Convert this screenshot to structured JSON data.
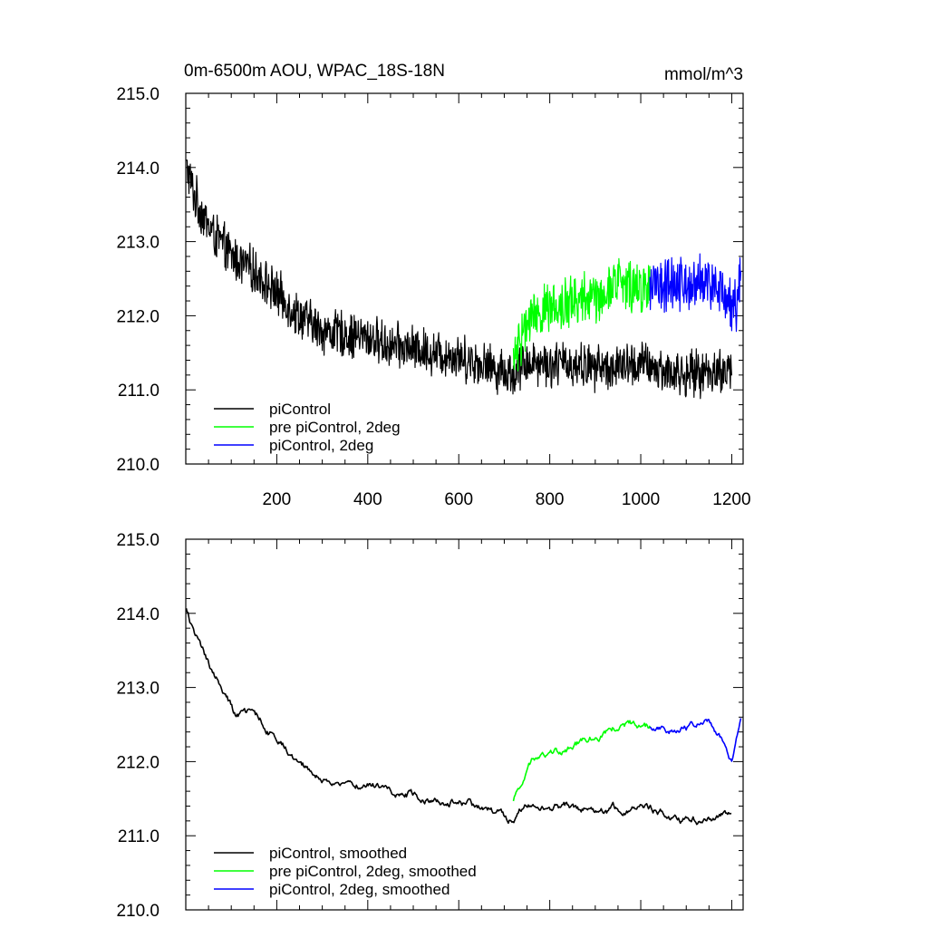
{
  "chart_data": [
    {
      "type": "line",
      "title": "0m-6500m AOU, WPAC_18S-18N",
      "units": "mmol/m^3",
      "xlim": [
        0,
        1225
      ],
      "ylim": [
        210.0,
        215.0
      ],
      "xticks": [
        200,
        400,
        600,
        800,
        1000,
        1200
      ],
      "xtick_labels": [
        "200",
        "400",
        "600",
        "800",
        "1000",
        "1200"
      ],
      "yticks": [
        210.0,
        211.0,
        212.0,
        213.0,
        214.0,
        215.0
      ],
      "ytick_labels": [
        "210.0",
        "211.0",
        "212.0",
        "213.0",
        "214.0",
        "215.0"
      ],
      "grid": false,
      "legend_position": "bottom-left",
      "series": [
        {
          "name": "piControl",
          "color": "#000000",
          "x_range": [
            1,
            1200
          ],
          "trend": [
            [
              1,
              214.0
            ],
            [
              20,
              213.6
            ],
            [
              50,
              213.2
            ],
            [
              100,
              212.8
            ],
            [
              150,
              212.6
            ],
            [
              200,
              212.3
            ],
            [
              250,
              212.0
            ],
            [
              300,
              211.8
            ],
            [
              350,
              211.75
            ],
            [
              400,
              211.7
            ],
            [
              450,
              211.6
            ],
            [
              500,
              211.55
            ],
            [
              550,
              211.5
            ],
            [
              600,
              211.45
            ],
            [
              650,
              211.35
            ],
            [
              700,
              211.25
            ],
            [
              720,
              211.2
            ],
            [
              750,
              211.4
            ],
            [
              800,
              211.35
            ],
            [
              850,
              211.35
            ],
            [
              900,
              211.3
            ],
            [
              950,
              211.3
            ],
            [
              1000,
              211.35
            ],
            [
              1050,
              211.25
            ],
            [
              1100,
              211.2
            ],
            [
              1150,
              211.25
            ],
            [
              1200,
              211.25
            ]
          ],
          "noise_amplitude": 0.3,
          "min": 210.5,
          "max": 214.4
        },
        {
          "name": "pre piControl, 2deg",
          "color": "#00ff00",
          "x_range": [
            720,
            1020
          ],
          "trend": [
            [
              720,
              211.4
            ],
            [
              740,
              211.7
            ],
            [
              760,
              212.0
            ],
            [
              800,
              212.1
            ],
            [
              850,
              212.2
            ],
            [
              900,
              212.25
            ],
            [
              950,
              212.45
            ],
            [
              1000,
              212.4
            ],
            [
              1020,
              212.4
            ]
          ],
          "noise_amplitude": 0.35,
          "min": 210.9,
          "max": 213.2
        },
        {
          "name": "piControl, 2deg",
          "color": "#0000ff",
          "x_range": [
            1020,
            1220
          ],
          "trend": [
            [
              1020,
              212.4
            ],
            [
              1060,
              212.4
            ],
            [
              1100,
              212.45
            ],
            [
              1150,
              212.45
            ],
            [
              1180,
              212.35
            ],
            [
              1200,
              212.05
            ],
            [
              1210,
              212.2
            ],
            [
              1220,
              212.6
            ]
          ],
          "noise_amplitude": 0.35,
          "min": 211.6,
          "max": 213.2
        }
      ]
    },
    {
      "type": "line",
      "title": "",
      "xlim": [
        0,
        1225
      ],
      "ylim": [
        210.0,
        215.0
      ],
      "xticks": [
        200,
        400,
        600,
        800,
        1000,
        1200
      ],
      "yticks": [
        210.0,
        211.0,
        212.0,
        213.0,
        214.0,
        215.0
      ],
      "ytick_labels": [
        "210.0",
        "211.0",
        "212.0",
        "213.0",
        "214.0",
        "215.0"
      ],
      "grid": false,
      "legend_position": "bottom-left",
      "series": [
        {
          "name": "piControl, smoothed",
          "color": "#000000",
          "x_range": [
            1,
            1200
          ],
          "trend": [
            [
              1,
              214.05
            ],
            [
              20,
              213.7
            ],
            [
              50,
              213.3
            ],
            [
              80,
              213.0
            ],
            [
              110,
              212.6
            ],
            [
              150,
              212.65
            ],
            [
              200,
              212.3
            ],
            [
              250,
              212.0
            ],
            [
              300,
              211.75
            ],
            [
              350,
              211.7
            ],
            [
              400,
              211.7
            ],
            [
              450,
              211.6
            ],
            [
              500,
              211.55
            ],
            [
              550,
              211.5
            ],
            [
              600,
              211.45
            ],
            [
              650,
              211.35
            ],
            [
              700,
              211.25
            ],
            [
              720,
              211.2
            ],
            [
              750,
              211.45
            ],
            [
              800,
              211.4
            ],
            [
              850,
              211.4
            ],
            [
              900,
              211.35
            ],
            [
              950,
              211.35
            ],
            [
              1000,
              211.4
            ],
            [
              1050,
              211.3
            ],
            [
              1100,
              211.2
            ],
            [
              1150,
              211.25
            ],
            [
              1200,
              211.3
            ]
          ],
          "noise_amplitude": 0.12,
          "min": 211.0,
          "max": 214.1
        },
        {
          "name": "pre piControl, 2deg, smoothed",
          "color": "#00ff00",
          "x_range": [
            720,
            1020
          ],
          "trend": [
            [
              720,
              211.45
            ],
            [
              740,
              211.75
            ],
            [
              760,
              212.0
            ],
            [
              800,
              212.1
            ],
            [
              850,
              212.2
            ],
            [
              900,
              212.3
            ],
            [
              950,
              212.5
            ],
            [
              980,
              212.5
            ],
            [
              1000,
              212.45
            ],
            [
              1020,
              212.45
            ]
          ],
          "noise_amplitude": 0.12,
          "min": 211.4,
          "max": 212.65
        },
        {
          "name": "piControl, 2deg, smoothed",
          "color": "#0000ff",
          "x_range": [
            1020,
            1220
          ],
          "trend": [
            [
              1020,
              212.45
            ],
            [
              1060,
              212.4
            ],
            [
              1100,
              212.45
            ],
            [
              1150,
              212.55
            ],
            [
              1180,
              212.3
            ],
            [
              1200,
              212.0
            ],
            [
              1210,
              212.3
            ],
            [
              1220,
              212.65
            ]
          ],
          "noise_amplitude": 0.1,
          "min": 211.95,
          "max": 212.7
        }
      ]
    }
  ]
}
